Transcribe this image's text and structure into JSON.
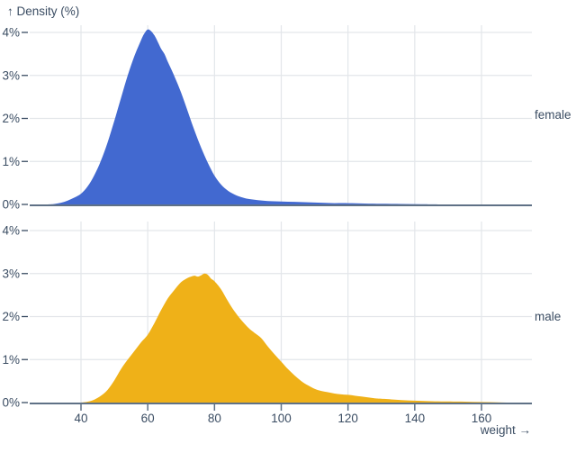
{
  "title": "↑ Density (%)",
  "x_axis": {
    "label": "weight →",
    "ticks": [
      40,
      60,
      80,
      100,
      120,
      140,
      160
    ]
  },
  "y_axis": {
    "ticks": [
      0,
      1,
      2,
      3,
      4
    ],
    "tick_format": "%"
  },
  "facets": [
    {
      "label": "female"
    },
    {
      "label": "male"
    }
  ],
  "colors": {
    "female_fill": "#4269d0",
    "male_fill": "#efb118",
    "grid": "#e3e6ea",
    "axis": "#5f7186",
    "text": "#3b4d63"
  },
  "chart_data": {
    "type": "area",
    "title": "Density (%) of weight, faceted by sex",
    "xlabel": "weight",
    "ylabel": "Density (%)",
    "x_domain": [
      25,
      175
    ],
    "y_domain": [
      0,
      4
    ],
    "grid": true,
    "facet_label_position": "right",
    "series": [
      {
        "name": "female",
        "color": "#4269d0",
        "points": [
          [
            30,
            0
          ],
          [
            32,
            0.01
          ],
          [
            34,
            0.04
          ],
          [
            36,
            0.09
          ],
          [
            38,
            0.16
          ],
          [
            40,
            0.25
          ],
          [
            42,
            0.42
          ],
          [
            44,
            0.68
          ],
          [
            46,
            1.02
          ],
          [
            48,
            1.45
          ],
          [
            50,
            1.95
          ],
          [
            52,
            2.48
          ],
          [
            54,
            3.0
          ],
          [
            56,
            3.45
          ],
          [
            58,
            3.82
          ],
          [
            59,
            3.98
          ],
          [
            60,
            4.07
          ],
          [
            61,
            4.03
          ],
          [
            62,
            3.93
          ],
          [
            63,
            3.78
          ],
          [
            64,
            3.62
          ],
          [
            65,
            3.5
          ],
          [
            66,
            3.32
          ],
          [
            68,
            2.98
          ],
          [
            70,
            2.6
          ],
          [
            72,
            2.16
          ],
          [
            74,
            1.72
          ],
          [
            76,
            1.32
          ],
          [
            78,
            0.97
          ],
          [
            80,
            0.67
          ],
          [
            82,
            0.46
          ],
          [
            84,
            0.32
          ],
          [
            86,
            0.23
          ],
          [
            88,
            0.17
          ],
          [
            90,
            0.13
          ],
          [
            93,
            0.1
          ],
          [
            96,
            0.08
          ],
          [
            100,
            0.07
          ],
          [
            104,
            0.06
          ],
          [
            108,
            0.05
          ],
          [
            112,
            0.04
          ],
          [
            116,
            0.03
          ],
          [
            120,
            0.03
          ],
          [
            125,
            0.02
          ],
          [
            130,
            0.015
          ],
          [
            136,
            0.01
          ],
          [
            142,
            0.005
          ],
          [
            148,
            0
          ],
          [
            160,
            0
          ],
          [
            175,
            0
          ]
        ]
      },
      {
        "name": "male",
        "color": "#efb118",
        "points": [
          [
            40,
            0
          ],
          [
            42,
            0.02
          ],
          [
            44,
            0.07
          ],
          [
            46,
            0.16
          ],
          [
            48,
            0.3
          ],
          [
            50,
            0.52
          ],
          [
            52,
            0.78
          ],
          [
            54,
            1.0
          ],
          [
            56,
            1.2
          ],
          [
            58,
            1.4
          ],
          [
            60,
            1.58
          ],
          [
            62,
            1.85
          ],
          [
            64,
            2.15
          ],
          [
            66,
            2.42
          ],
          [
            68,
            2.62
          ],
          [
            70,
            2.8
          ],
          [
            72,
            2.9
          ],
          [
            73,
            2.93
          ],
          [
            74,
            2.95
          ],
          [
            75,
            2.93
          ],
          [
            76,
            2.96
          ],
          [
            77,
            3.0
          ],
          [
            78,
            2.97
          ],
          [
            79,
            2.88
          ],
          [
            80,
            2.82
          ],
          [
            82,
            2.63
          ],
          [
            84,
            2.36
          ],
          [
            86,
            2.12
          ],
          [
            88,
            1.92
          ],
          [
            90,
            1.75
          ],
          [
            91,
            1.68
          ],
          [
            92,
            1.62
          ],
          [
            94,
            1.5
          ],
          [
            96,
            1.3
          ],
          [
            98,
            1.12
          ],
          [
            100,
            0.95
          ],
          [
            102,
            0.78
          ],
          [
            104,
            0.63
          ],
          [
            106,
            0.5
          ],
          [
            108,
            0.4
          ],
          [
            110,
            0.32
          ],
          [
            112,
            0.27
          ],
          [
            114,
            0.24
          ],
          [
            116,
            0.21
          ],
          [
            118,
            0.19
          ],
          [
            120,
            0.18
          ],
          [
            122,
            0.16
          ],
          [
            124,
            0.14
          ],
          [
            126,
            0.12
          ],
          [
            128,
            0.1
          ],
          [
            130,
            0.09
          ],
          [
            134,
            0.07
          ],
          [
            138,
            0.05
          ],
          [
            142,
            0.04
          ],
          [
            146,
            0.03
          ],
          [
            150,
            0.025
          ],
          [
            155,
            0.02
          ],
          [
            160,
            0.012
          ],
          [
            165,
            0.006
          ],
          [
            170,
            0
          ],
          [
            175,
            0
          ]
        ]
      }
    ]
  }
}
